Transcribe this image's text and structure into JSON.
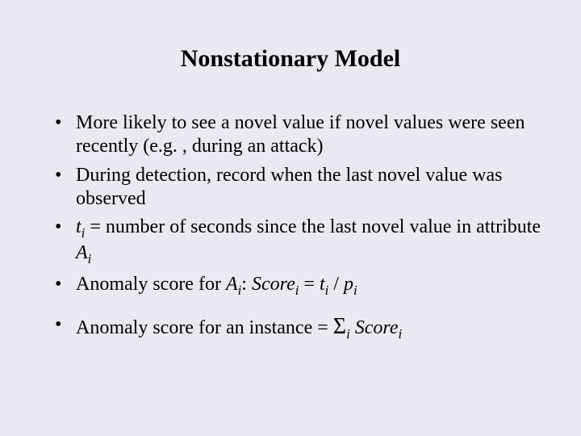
{
  "background_color": "#e9e9f2",
  "text_color": "#000000",
  "font_family": "Times New Roman",
  "title": {
    "text": "Nonstationary Model",
    "fontsize": 30,
    "weight": "bold",
    "align": "center"
  },
  "bullets": {
    "fontsize": 24,
    "marker": "•",
    "items": [
      {
        "text": "More likely to see a novel value if novel values were seen recently (e.g. , during an attack)"
      },
      {
        "text": "During detection, record when the last novel value was observed"
      },
      {
        "prefix": "",
        "var_t": "t",
        "sub_i": "i",
        "mid": " = number of seconds since the last novel value in attribute ",
        "var_A": "A"
      },
      {
        "lead": "Anomaly score for ",
        "var_A": "A",
        "sub_i": "i",
        "colon": ": ",
        "score": "Score",
        "eq": " = ",
        "var_t": "t",
        "slash": " / ",
        "var_p": "p"
      },
      {
        "lead": "Anomaly score for an instance = ",
        "sigma": "Σ",
        "sub_i": "i",
        "space": " ",
        "score": "Score"
      }
    ]
  }
}
